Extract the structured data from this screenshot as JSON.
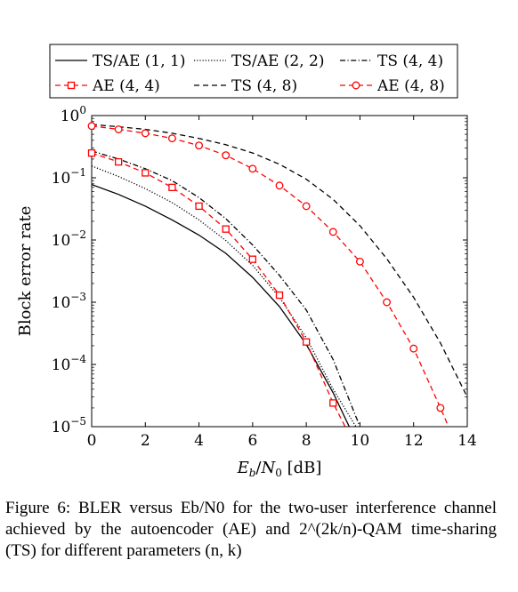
{
  "caption": "Figure 6: BLER versus Eb/N0 for the two-user interference channel achieved by the autoencoder (AE) and 2^(2k/n)-QAM time-sharing (TS) for different parameters (n, k)",
  "chart_data": {
    "type": "line",
    "xlabel": "Eb/N0 [dB]",
    "ylabel": "Block error rate",
    "xlim": [
      0,
      14
    ],
    "ylim": [
      1e-05,
      1
    ],
    "yscale": "log",
    "x_ticks": [
      "0",
      "2",
      "4",
      "6",
      "8",
      "10",
      "12",
      "14"
    ],
    "y_ticks": [
      {
        "base": "10",
        "exp": "0"
      },
      {
        "base": "10",
        "exp": "−1"
      },
      {
        "base": "10",
        "exp": "−2"
      },
      {
        "base": "10",
        "exp": "−3"
      },
      {
        "base": "10",
        "exp": "−4"
      },
      {
        "base": "10",
        "exp": "−5"
      }
    ],
    "legend_position": "top",
    "grid": false,
    "series": [
      {
        "name": "TS/AE (1, 1)",
        "color": "#000000",
        "dash": "solid",
        "marker": "none",
        "x": [
          0,
          1,
          2,
          3,
          4,
          5,
          6,
          7,
          8,
          9,
          9.6
        ],
        "y": [
          0.078,
          0.054,
          0.035,
          0.021,
          0.012,
          0.0061,
          0.0025,
          0.00085,
          0.00021,
          3.5e-05,
          1e-05
        ]
      },
      {
        "name": "TS/AE (2, 2)",
        "color": "#000000",
        "dash": "dotted",
        "marker": "none",
        "x": [
          0,
          1,
          2,
          3,
          4,
          5,
          6,
          7,
          8,
          9,
          9.85
        ],
        "y": [
          0.155,
          0.105,
          0.067,
          0.04,
          0.021,
          0.0098,
          0.0039,
          0.0012,
          0.00027,
          4e-05,
          1e-05
        ]
      },
      {
        "name": "TS (4, 4)",
        "color": "#000000",
        "dash": "dashdot",
        "marker": "none",
        "x": [
          0,
          1,
          2,
          3,
          4,
          5,
          6,
          7,
          8,
          9,
          10
        ],
        "y": [
          0.27,
          0.2,
          0.14,
          0.09,
          0.048,
          0.022,
          0.0083,
          0.0027,
          0.00075,
          0.00012,
          1e-05
        ]
      },
      {
        "name": "AE (4, 4)",
        "color": "#ff0000",
        "dash": "dashed",
        "marker": "square",
        "x": [
          0,
          1,
          2,
          3,
          4,
          5,
          6,
          7,
          8,
          9,
          9.45
        ],
        "y": [
          0.25,
          0.18,
          0.12,
          0.07,
          0.035,
          0.015,
          0.0049,
          0.0013,
          0.00023,
          2.4e-05,
          1e-05
        ]
      },
      {
        "name": "TS (4, 8)",
        "color": "#000000",
        "dash": "dashed",
        "marker": "none",
        "x": [
          0,
          1,
          2,
          3,
          4,
          5,
          6,
          7,
          8,
          9,
          10,
          11,
          12,
          13,
          14
        ],
        "y": [
          0.72,
          0.66,
          0.6,
          0.52,
          0.43,
          0.34,
          0.25,
          0.165,
          0.095,
          0.045,
          0.017,
          0.005,
          0.0012,
          0.00022,
          3e-05
        ]
      },
      {
        "name": "AE (4, 8)",
        "color": "#ff0000",
        "dash": "dashed",
        "marker": "circle",
        "x": [
          0,
          1,
          2,
          3,
          4,
          5,
          6,
          7,
          8,
          9,
          10,
          11,
          12,
          13,
          13.3
        ],
        "y": [
          0.68,
          0.6,
          0.52,
          0.43,
          0.33,
          0.23,
          0.14,
          0.075,
          0.035,
          0.0135,
          0.0045,
          0.001,
          0.00018,
          2e-05,
          1e-05
        ]
      }
    ]
  }
}
